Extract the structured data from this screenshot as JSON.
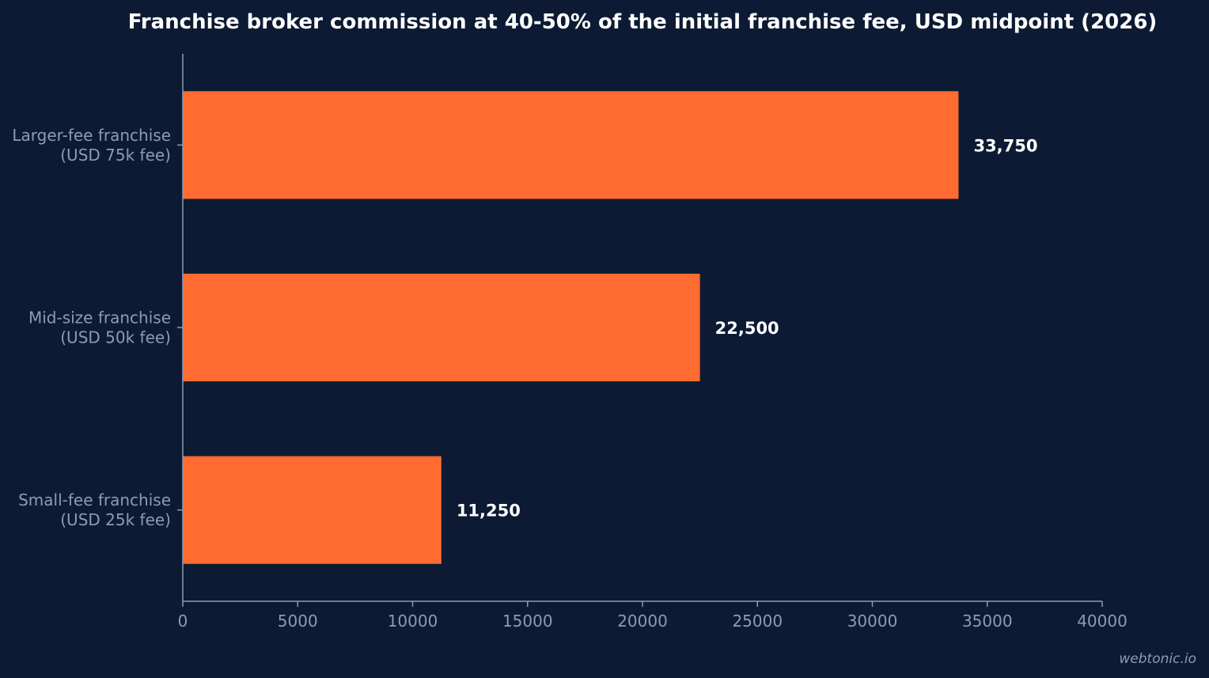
{
  "chart_data": {
    "type": "bar",
    "orientation": "horizontal",
    "title": "Franchise broker commission at 40-50% of the initial franchise fee, USD midpoint (2026)",
    "categories": [
      [
        "Larger-fee franchise",
        "(USD 75k fee)"
      ],
      [
        "Mid-size franchise",
        "(USD 50k fee)"
      ],
      [
        "Small-fee franchise",
        "(USD 25k fee)"
      ]
    ],
    "values": [
      33750,
      22500,
      11250
    ],
    "value_labels": [
      "33,750",
      "22,500",
      "11,250"
    ],
    "xlim": [
      0,
      40000
    ],
    "xticks": [
      0,
      5000,
      10000,
      15000,
      20000,
      25000,
      30000,
      35000,
      40000
    ],
    "xtick_labels": [
      "0",
      "5000",
      "10000",
      "15000",
      "20000",
      "25000",
      "30000",
      "35000",
      "40000"
    ],
    "xlabel": "",
    "ylabel": "",
    "grid": false,
    "bar_color": "#ff6b30",
    "background_color": "#0c1b33"
  },
  "watermark": "webtonic.io"
}
